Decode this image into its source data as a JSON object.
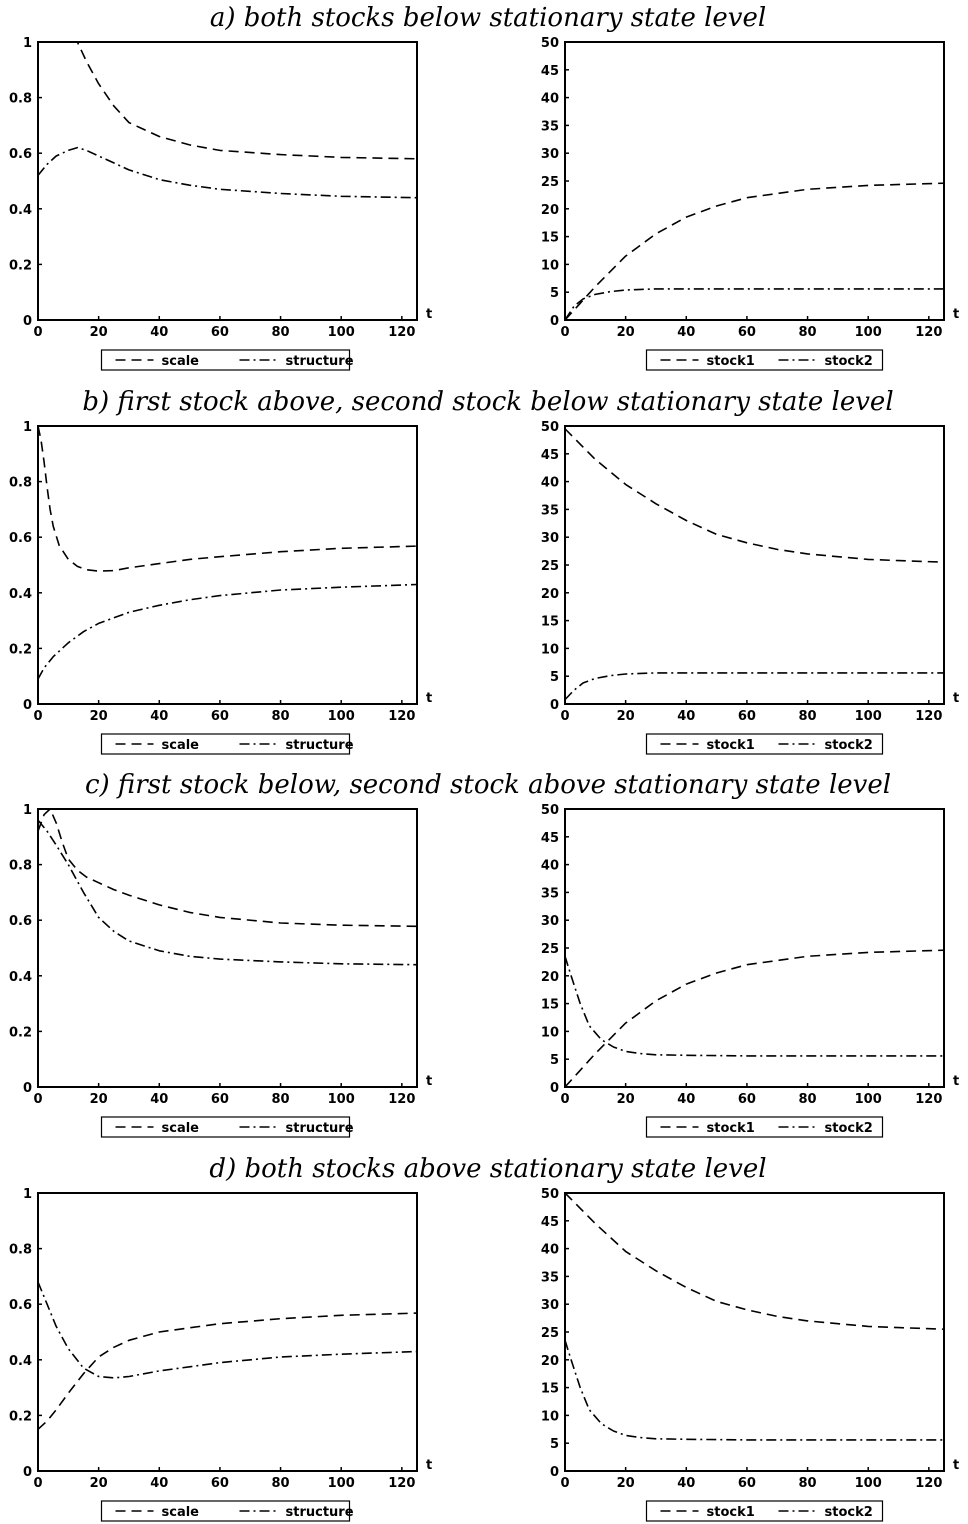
{
  "panels": [
    {
      "title": "a) both stocks below stationary state level"
    },
    {
      "title": "b) first stock above, second stock below stationary state level"
    },
    {
      "title": "c) first stock below, second stock above stationary state level"
    },
    {
      "title": "d) both stocks above stationary state level"
    }
  ],
  "chart_data": [
    {
      "type": "line",
      "panel": "a",
      "xlabel": "t",
      "ylim": [
        0,
        1
      ],
      "xlim": [
        0,
        125
      ],
      "xticks": [
        0,
        20,
        40,
        60,
        80,
        100,
        120
      ],
      "yticks": [
        0,
        0.2,
        0.4,
        0.6,
        0.8,
        1
      ],
      "series": [
        {
          "name": "scale",
          "style": "dashed",
          "x": [
            0,
            5,
            10,
            13,
            16,
            20,
            25,
            30,
            40,
            50,
            60,
            80,
            100,
            125
          ],
          "y": [
            1,
            1,
            1,
            1,
            0.93,
            0.85,
            0.77,
            0.71,
            0.66,
            0.63,
            0.61,
            0.595,
            0.585,
            0.58
          ]
        },
        {
          "name": "structure",
          "style": "dashdot",
          "x": [
            0,
            3,
            6,
            10,
            13,
            16,
            20,
            25,
            30,
            40,
            50,
            60,
            80,
            100,
            125
          ],
          "y": [
            0.52,
            0.56,
            0.59,
            0.61,
            0.62,
            0.61,
            0.59,
            0.565,
            0.54,
            0.505,
            0.485,
            0.47,
            0.455,
            0.445,
            0.44
          ]
        }
      ]
    },
    {
      "type": "line",
      "panel": "a",
      "xlabel": "t",
      "ylim": [
        0,
        50
      ],
      "xlim": [
        0,
        125
      ],
      "xticks": [
        0,
        20,
        40,
        60,
        80,
        100,
        120
      ],
      "yticks": [
        0,
        5,
        10,
        15,
        20,
        25,
        30,
        35,
        40,
        45,
        50
      ],
      "series": [
        {
          "name": "stock1",
          "style": "dashed",
          "x": [
            0,
            5,
            10,
            20,
            30,
            40,
            50,
            60,
            80,
            100,
            125
          ],
          "y": [
            0,
            3,
            6,
            11.5,
            15.5,
            18.5,
            20.5,
            22,
            23.5,
            24.2,
            24.6
          ]
        },
        {
          "name": "stock2",
          "style": "dashdot",
          "x": [
            0,
            3,
            6,
            10,
            15,
            20,
            30,
            40,
            60,
            80,
            100,
            125
          ],
          "y": [
            0,
            2.5,
            3.8,
            4.6,
            5.1,
            5.4,
            5.6,
            5.6,
            5.6,
            5.6,
            5.6,
            5.6
          ]
        }
      ]
    },
    {
      "type": "line",
      "panel": "b",
      "xlabel": "t",
      "ylim": [
        0,
        1
      ],
      "xlim": [
        0,
        125
      ],
      "xticks": [
        0,
        20,
        40,
        60,
        80,
        100,
        120
      ],
      "yticks": [
        0,
        0.2,
        0.4,
        0.6,
        0.8,
        1
      ],
      "series": [
        {
          "name": "scale",
          "style": "dashed",
          "x": [
            0,
            1,
            2,
            3,
            4,
            5,
            7,
            10,
            13,
            16,
            20,
            25,
            30,
            40,
            50,
            60,
            80,
            100,
            125
          ],
          "y": [
            1,
            0.95,
            0.87,
            0.78,
            0.7,
            0.64,
            0.57,
            0.52,
            0.495,
            0.483,
            0.478,
            0.48,
            0.49,
            0.505,
            0.52,
            0.53,
            0.548,
            0.56,
            0.568
          ]
        },
        {
          "name": "structure",
          "style": "dashdot",
          "x": [
            0,
            2,
            5,
            10,
            15,
            20,
            25,
            30,
            40,
            50,
            60,
            80,
            100,
            125
          ],
          "y": [
            0.09,
            0.13,
            0.17,
            0.22,
            0.26,
            0.29,
            0.31,
            0.33,
            0.355,
            0.375,
            0.39,
            0.41,
            0.42,
            0.43
          ]
        }
      ]
    },
    {
      "type": "line",
      "panel": "b",
      "xlabel": "t",
      "ylim": [
        0,
        50
      ],
      "xlim": [
        0,
        125
      ],
      "xticks": [
        0,
        20,
        40,
        60,
        80,
        100,
        120
      ],
      "yticks": [
        0,
        5,
        10,
        15,
        20,
        25,
        30,
        35,
        40,
        45,
        50
      ],
      "series": [
        {
          "name": "stock1",
          "style": "dashed",
          "x": [
            0,
            10,
            20,
            30,
            40,
            50,
            60,
            70,
            80,
            90,
            100,
            110,
            125
          ],
          "y": [
            49.5,
            44,
            39.5,
            36,
            33,
            30.5,
            29,
            27.8,
            27,
            26.5,
            26,
            25.8,
            25.5
          ]
        },
        {
          "name": "stock2",
          "style": "dashdot",
          "x": [
            0,
            3,
            6,
            10,
            15,
            20,
            30,
            40,
            60,
            80,
            100,
            125
          ],
          "y": [
            0.8,
            2.5,
            3.8,
            4.6,
            5.1,
            5.4,
            5.6,
            5.6,
            5.6,
            5.6,
            5.6,
            5.6
          ]
        }
      ]
    },
    {
      "type": "line",
      "panel": "c",
      "xlabel": "t",
      "ylim": [
        0,
        1
      ],
      "xlim": [
        0,
        125
      ],
      "xticks": [
        0,
        20,
        40,
        60,
        80,
        100,
        120
      ],
      "yticks": [
        0,
        0.2,
        0.4,
        0.6,
        0.8,
        1
      ],
      "series": [
        {
          "name": "scale",
          "style": "dashed",
          "x": [
            0,
            2,
            4,
            6,
            8,
            10,
            13,
            16,
            20,
            25,
            30,
            40,
            50,
            60,
            80,
            100,
            125
          ],
          "y": [
            0.92,
            0.98,
            1,
            0.95,
            0.88,
            0.82,
            0.78,
            0.755,
            0.735,
            0.71,
            0.69,
            0.655,
            0.628,
            0.61,
            0.59,
            0.582,
            0.578
          ]
        },
        {
          "name": "structure",
          "style": "dashdot",
          "x": [
            0,
            3,
            6,
            10,
            15,
            20,
            25,
            30,
            40,
            50,
            60,
            80,
            100,
            125
          ],
          "y": [
            0.96,
            0.92,
            0.87,
            0.8,
            0.7,
            0.61,
            0.56,
            0.525,
            0.49,
            0.47,
            0.46,
            0.45,
            0.443,
            0.44
          ]
        }
      ]
    },
    {
      "type": "line",
      "panel": "c",
      "xlabel": "t",
      "ylim": [
        0,
        50
      ],
      "xlim": [
        0,
        125
      ],
      "xticks": [
        0,
        20,
        40,
        60,
        80,
        100,
        120
      ],
      "yticks": [
        0,
        5,
        10,
        15,
        20,
        25,
        30,
        35,
        40,
        45,
        50
      ],
      "series": [
        {
          "name": "stock1",
          "style": "dashed",
          "x": [
            0,
            5,
            10,
            20,
            30,
            40,
            50,
            60,
            80,
            100,
            125
          ],
          "y": [
            0,
            3,
            6,
            11.5,
            15.5,
            18.5,
            20.5,
            22,
            23.5,
            24.2,
            24.6
          ]
        },
        {
          "name": "stock2",
          "style": "dashdot",
          "x": [
            0,
            2,
            5,
            8,
            12,
            16,
            20,
            25,
            30,
            40,
            60,
            80,
            100,
            125
          ],
          "y": [
            23.5,
            20,
            15,
            11,
            8.5,
            7.2,
            6.4,
            6,
            5.8,
            5.7,
            5.6,
            5.6,
            5.6,
            5.6
          ]
        }
      ]
    },
    {
      "type": "line",
      "panel": "d",
      "xlabel": "t",
      "ylim": [
        0,
        1
      ],
      "xlim": [
        0,
        125
      ],
      "xticks": [
        0,
        20,
        40,
        60,
        80,
        100,
        120
      ],
      "yticks": [
        0,
        0.2,
        0.4,
        0.6,
        0.8,
        1
      ],
      "series": [
        {
          "name": "scale",
          "style": "dashed",
          "x": [
            0,
            3,
            6,
            10,
            15,
            20,
            25,
            30,
            40,
            50,
            60,
            80,
            100,
            125
          ],
          "y": [
            0.15,
            0.18,
            0.22,
            0.28,
            0.35,
            0.41,
            0.445,
            0.47,
            0.5,
            0.515,
            0.53,
            0.548,
            0.56,
            0.568
          ]
        },
        {
          "name": "structure",
          "style": "dashdot",
          "x": [
            0,
            3,
            6,
            10,
            15,
            20,
            25,
            30,
            40,
            50,
            60,
            80,
            100,
            125
          ],
          "y": [
            0.68,
            0.6,
            0.52,
            0.44,
            0.37,
            0.34,
            0.335,
            0.34,
            0.36,
            0.375,
            0.39,
            0.41,
            0.42,
            0.43
          ]
        }
      ]
    },
    {
      "type": "line",
      "panel": "d",
      "xlabel": "t",
      "ylim": [
        0,
        50
      ],
      "xlim": [
        0,
        125
      ],
      "xticks": [
        0,
        20,
        40,
        60,
        80,
        100,
        120
      ],
      "yticks": [
        0,
        5,
        10,
        15,
        20,
        25,
        30,
        35,
        40,
        45,
        50
      ],
      "series": [
        {
          "name": "stock1",
          "style": "dashed",
          "x": [
            0,
            10,
            20,
            30,
            40,
            50,
            60,
            70,
            80,
            90,
            100,
            110,
            125
          ],
          "y": [
            50,
            44.5,
            39.5,
            36,
            33,
            30.5,
            29,
            27.8,
            27,
            26.5,
            26,
            25.8,
            25.5
          ]
        },
        {
          "name": "stock2",
          "style": "dashdot",
          "x": [
            0,
            2,
            5,
            8,
            12,
            16,
            20,
            25,
            30,
            40,
            60,
            80,
            100,
            125
          ],
          "y": [
            23.5,
            20,
            15,
            11,
            8.5,
            7.2,
            6.4,
            6,
            5.8,
            5.7,
            5.6,
            5.6,
            5.6,
            5.6
          ]
        }
      ]
    }
  ]
}
